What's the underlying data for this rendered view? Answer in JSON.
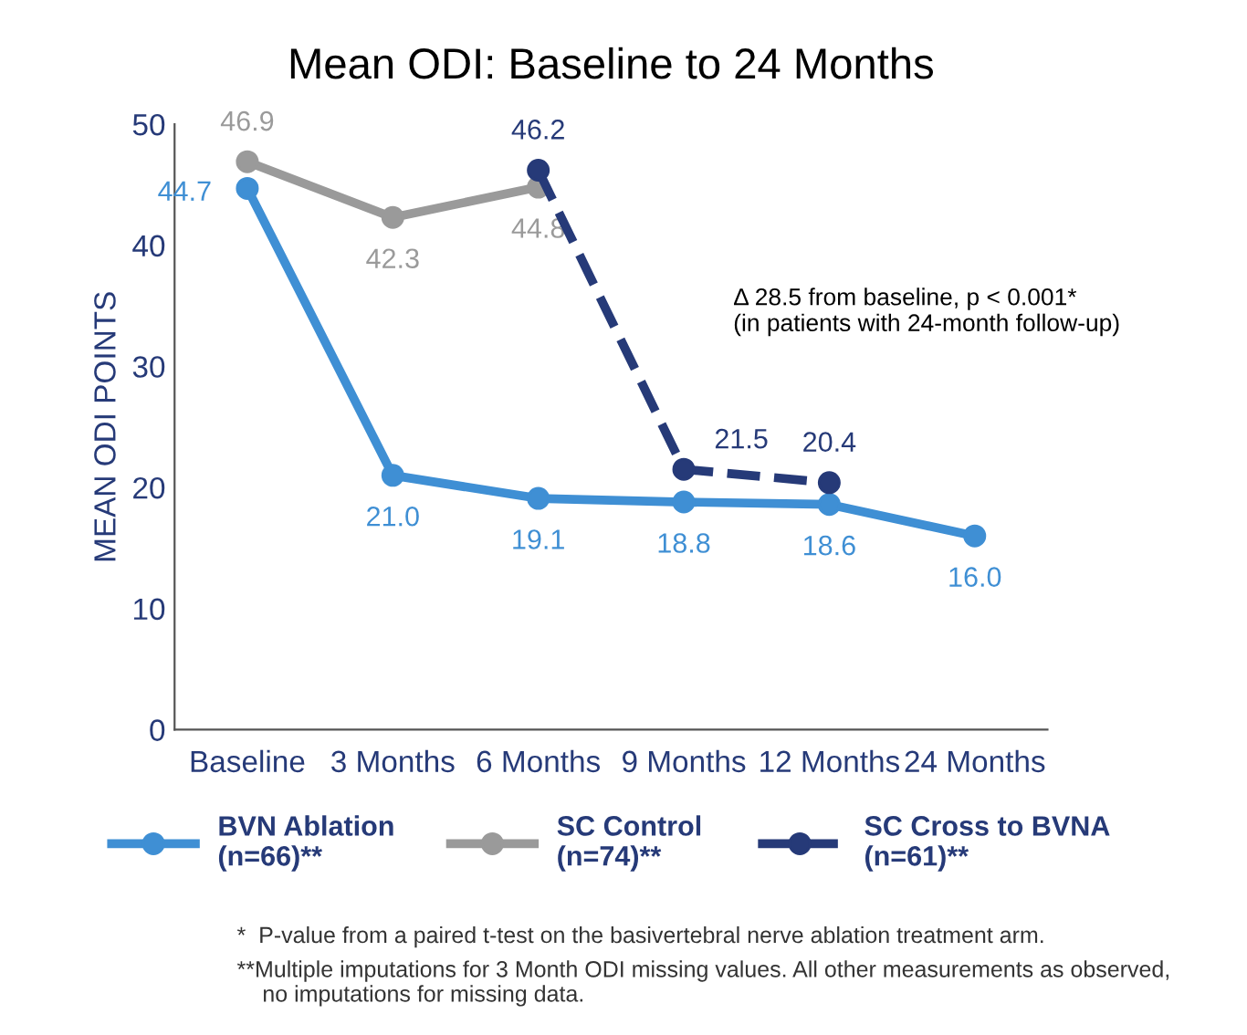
{
  "chart_data": {
    "type": "line",
    "title": "Mean ODI: Baseline to 24 Months",
    "ylabel": "MEAN ODI POINTS",
    "categories": [
      "Baseline",
      "3 Months",
      "6 Months",
      "9 Months",
      "12 Months",
      "24 Months"
    ],
    "series": [
      {
        "name": "BVN Ablation\n(n=66)**",
        "color": "#3f8fd4",
        "line_style": "solid",
        "values": [
          44.7,
          21.0,
          19.1,
          18.8,
          18.6,
          16.0
        ],
        "value_labels": [
          "44.7",
          "21.0",
          "19.1",
          "18.8",
          "18.6",
          "16.0"
        ]
      },
      {
        "name": "SC Control\n(n=74)**",
        "color": "#9a9a9a",
        "line_style": "solid",
        "values": [
          46.9,
          42.3,
          44.8,
          null,
          null,
          null
        ],
        "value_labels": [
          "46.9",
          "42.3",
          "44.8",
          null,
          null,
          null
        ]
      },
      {
        "name": "SC Cross to BVNA\n(n=61)**",
        "color": "#263a78",
        "line_style": "dashed",
        "values": [
          null,
          null,
          46.2,
          21.5,
          20.4,
          null
        ],
        "value_labels": [
          null,
          null,
          "46.2",
          "21.5",
          "20.4",
          null
        ]
      }
    ],
    "ylim": [
      0,
      50
    ],
    "yticks": [
      0,
      10,
      20,
      30,
      40,
      50
    ],
    "grid": false,
    "marker": "circle",
    "legend": "bottom",
    "annotations": [
      "Δ 28.5 from baseline, p < 0.001*\n(in patients with 24-month follow-up)",
      "*  P-value from a paired t-test on the basivertebral nerve ablation treatment arm.",
      "**Multiple imputations for 3 Month ODI missing values. All other measurements as observed,\n    no imputations for missing data."
    ]
  }
}
